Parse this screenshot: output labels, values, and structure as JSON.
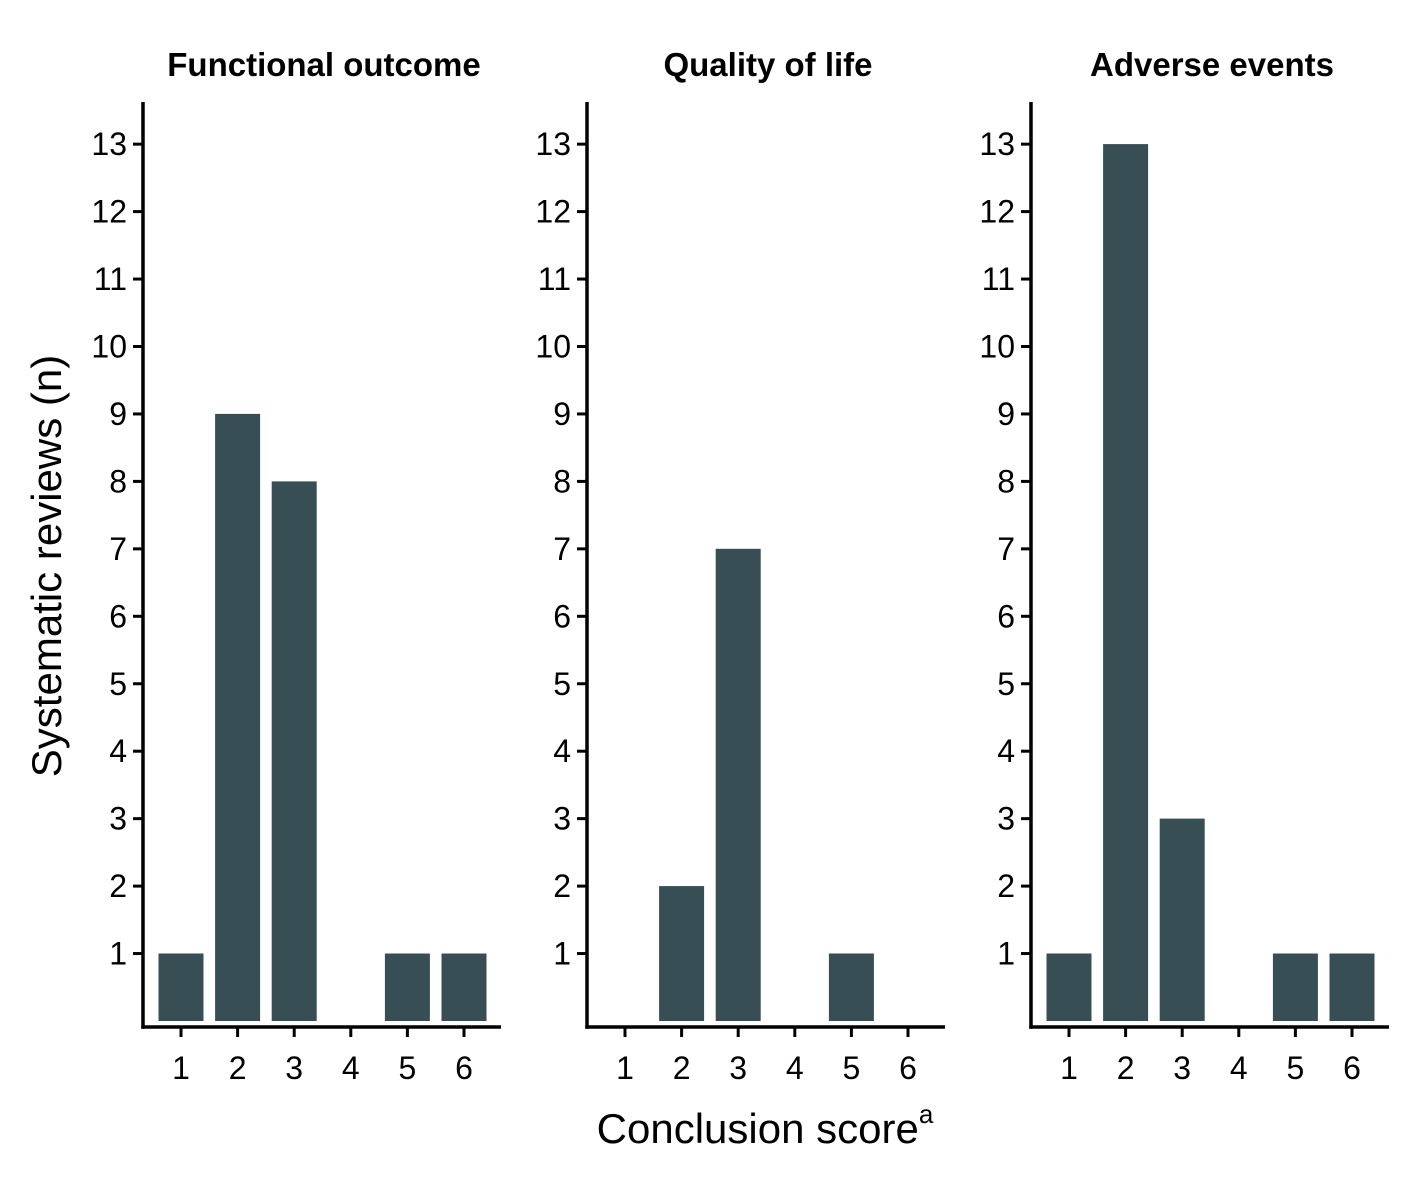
{
  "chart_data": {
    "type": "bar",
    "ylabel": "Systematic reviews (n)",
    "xlabel": "Conclusion score",
    "xlabel_superscript": "a",
    "categories": [
      "1",
      "2",
      "3",
      "4",
      "5",
      "6"
    ],
    "yticks": [
      1,
      2,
      3,
      4,
      5,
      6,
      7,
      8,
      9,
      10,
      11,
      12,
      13
    ],
    "ylim": [
      0,
      13.6
    ],
    "grid": false,
    "bar_color": "#384e55",
    "panels": [
      {
        "title": "Functional outcome",
        "values": [
          1,
          9,
          8,
          0,
          1,
          1
        ]
      },
      {
        "title": "Quality of life",
        "values": [
          0,
          2,
          7,
          0,
          1,
          0
        ]
      },
      {
        "title": "Adverse events",
        "values": [
          1,
          13,
          3,
          0,
          1,
          1
        ]
      }
    ]
  }
}
